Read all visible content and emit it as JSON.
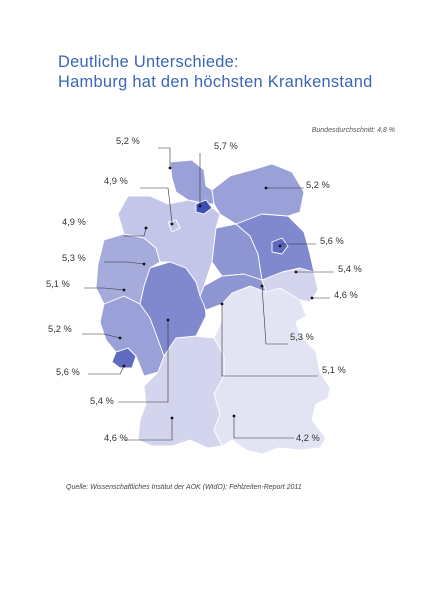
{
  "title": {
    "line1": "Deutliche Unterschiede:",
    "line2": "Hamburg hat den höchsten Krankenstand"
  },
  "national_average": "Bundesdurchschnitt: 4,8 %",
  "source": "Quelle: Wissenschaftliches Institut der AOK (WIdO); Fehlzeiten-Report 2011",
  "colors": {
    "title": "#3a66b4",
    "scale": {
      "4.2": "#e3e4f3",
      "4.6": "#d3d5ee",
      "4.9": "#c3c6e8",
      "5.1": "#a5abdb",
      "5.2": "#9aa1d8",
      "5.3": "#8d95d3",
      "5.4": "#8088ce",
      "5.5": "#6f79c7",
      "5.6": "#5f6ac1",
      "5.7": "#3f4eb5"
    }
  },
  "states": {
    "sh": {
      "label": "5,2 %",
      "value": 5.2
    },
    "hh": {
      "label": "5,7 %",
      "value": 5.7
    },
    "hb": {
      "label": "4,9 %",
      "value": 4.9
    },
    "nds": {
      "label": "4,9 %",
      "value": 4.9
    },
    "mv": {
      "label": "5,2 %",
      "value": 5.2
    },
    "bln": {
      "label": "5,6 %",
      "value": 5.6
    },
    "bb": {
      "label": "5,4 %",
      "value": 5.4
    },
    "st": {
      "label": "5,3 %",
      "value": 5.3
    },
    "nrw": {
      "label": "5,1 %",
      "value": 5.1
    },
    "sn": {
      "label": "4,6 %",
      "value": 4.6
    },
    "th": {
      "label": "5,3 %",
      "value": 5.3
    },
    "he": {
      "label": "5,4 %",
      "value": 5.4
    },
    "rp": {
      "label": "5,2 %",
      "value": 5.2
    },
    "sl": {
      "label": "5,6 %",
      "value": 5.6
    },
    "by": {
      "label": "5,1 %",
      "value": 5.1
    },
    "bw": {
      "label": "4,6 %",
      "value": 4.6
    },
    "by_south": {
      "label": "4,2 %",
      "value": 4.2
    }
  }
}
